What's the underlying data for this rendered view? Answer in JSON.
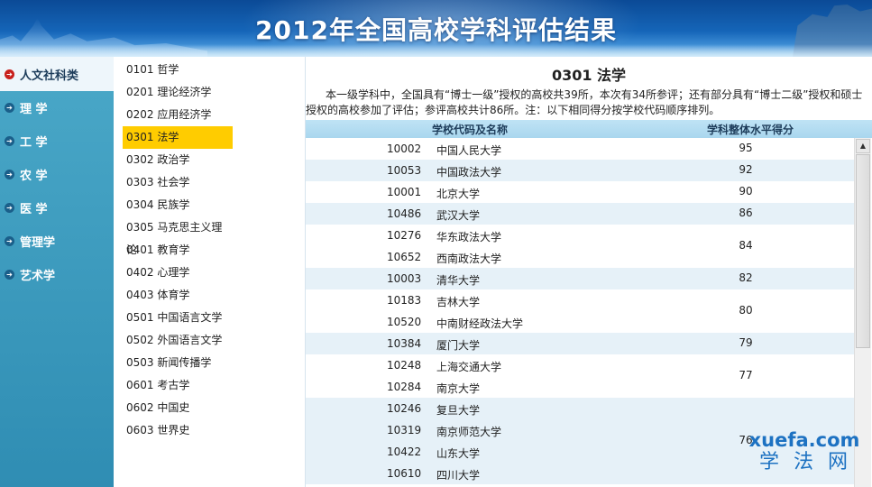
{
  "header": {
    "title": "2012年全国高校学科评估结果"
  },
  "categories": [
    {
      "label": "人文社科类",
      "active": true
    },
    {
      "label": "理  学"
    },
    {
      "label": "工  学"
    },
    {
      "label": "农  学"
    },
    {
      "label": "医  学"
    },
    {
      "label": "管理学"
    },
    {
      "label": "艺术学"
    }
  ],
  "subjects": [
    {
      "code": "0101",
      "name": "哲学"
    },
    {
      "code": "0201",
      "name": "理论经济学"
    },
    {
      "code": "0202",
      "name": "应用经济学"
    },
    {
      "code": "0301",
      "name": "法学",
      "active": true
    },
    {
      "code": "0302",
      "name": "政治学"
    },
    {
      "code": "0303",
      "name": "社会学"
    },
    {
      "code": "0304",
      "name": "民族学"
    },
    {
      "code": "0305",
      "name": "马克思主义理论"
    },
    {
      "code": "0401",
      "name": "教育学"
    },
    {
      "code": "0402",
      "name": "心理学"
    },
    {
      "code": "0403",
      "name": "体育学"
    },
    {
      "code": "0501",
      "name": "中国语言文学"
    },
    {
      "code": "0502",
      "name": "外国语言文学"
    },
    {
      "code": "0503",
      "name": "新闻传播学"
    },
    {
      "code": "0601",
      "name": "考古学"
    },
    {
      "code": "0602",
      "name": "中国史"
    },
    {
      "code": "0603",
      "name": "世界史"
    }
  ],
  "main": {
    "subject_title": "0301 法学",
    "intro": "本一级学科中，全国具有“博士一级”授权的高校共39所，本次有34所参评；还有部分具有“博士二级”授权和硕士授权的高校参加了评估；参评高校共计86所。注：以下相同得分按学校代码顺序排列。",
    "col_school": "学校代码及名称",
    "col_score": "学科整体水平得分",
    "groups": [
      {
        "score": "95",
        "schools": [
          {
            "code": "10002",
            "name": "中国人民大学"
          }
        ]
      },
      {
        "score": "92",
        "schools": [
          {
            "code": "10053",
            "name": "中国政法大学"
          }
        ]
      },
      {
        "score": "90",
        "schools": [
          {
            "code": "10001",
            "name": "北京大学"
          }
        ]
      },
      {
        "score": "86",
        "schools": [
          {
            "code": "10486",
            "name": "武汉大学"
          }
        ]
      },
      {
        "score": "84",
        "schools": [
          {
            "code": "10276",
            "name": "华东政法大学"
          },
          {
            "code": "10652",
            "name": "西南政法大学"
          }
        ]
      },
      {
        "score": "82",
        "schools": [
          {
            "code": "10003",
            "name": "清华大学"
          }
        ]
      },
      {
        "score": "80",
        "schools": [
          {
            "code": "10183",
            "name": "吉林大学"
          },
          {
            "code": "10520",
            "name": "中南财经政法大学"
          }
        ]
      },
      {
        "score": "79",
        "schools": [
          {
            "code": "10384",
            "name": "厦门大学"
          }
        ]
      },
      {
        "score": "77",
        "schools": [
          {
            "code": "10248",
            "name": "上海交通大学"
          },
          {
            "code": "10284",
            "name": "南京大学"
          }
        ]
      },
      {
        "score": "76",
        "schools": [
          {
            "code": "10246",
            "name": "复旦大学"
          },
          {
            "code": "10319",
            "name": "南京师范大学"
          },
          {
            "code": "10422",
            "name": "山东大学"
          },
          {
            "code": "10610",
            "name": "四川大学"
          }
        ]
      }
    ]
  },
  "watermark": {
    "domain": "xuefa.com",
    "cn": "学法网"
  },
  "colors": {
    "accent": "#ffcc00",
    "sidebar": "#2f8db3",
    "header": "#1565b8"
  }
}
